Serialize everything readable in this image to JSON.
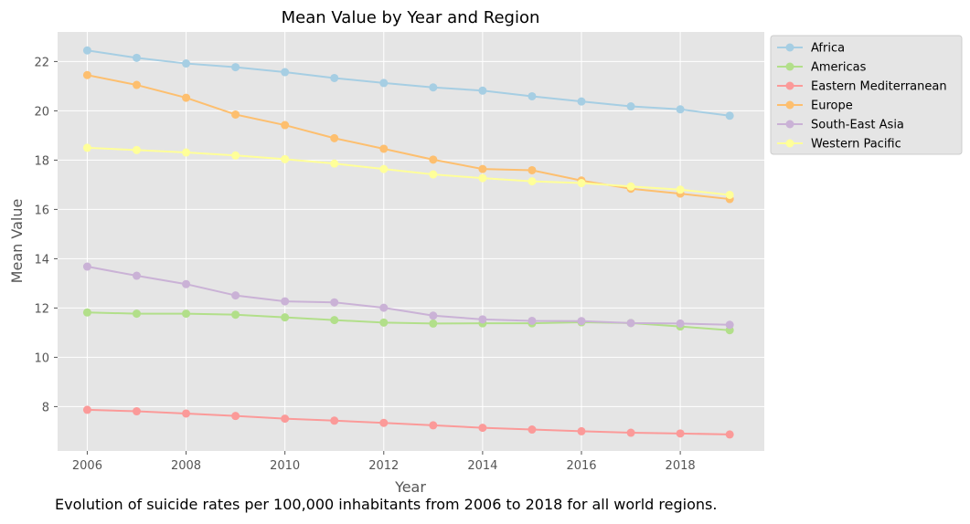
{
  "caption": "Evolution of suicide rates per 100,000 inhabitants from 2006 to 2018 for all world regions.",
  "chart_data": {
    "type": "line",
    "title": "Mean Value by Year and Region",
    "xlabel": "Year",
    "ylabel": "Mean Value",
    "xlim": [
      2005.4,
      2019.7
    ],
    "ylim": [
      6.2,
      23.2
    ],
    "x_ticks": [
      2006,
      2008,
      2010,
      2012,
      2014,
      2016,
      2018
    ],
    "y_ticks": [
      8,
      10,
      12,
      14,
      16,
      18,
      20,
      22
    ],
    "grid": true,
    "legend_position": "outside-top-right",
    "x": [
      2006,
      2007,
      2008,
      2009,
      2010,
      2011,
      2012,
      2013,
      2014,
      2015,
      2016,
      2017,
      2018,
      2019
    ],
    "series": [
      {
        "name": "Africa",
        "color": "#a6cee3",
        "values": [
          22.45,
          22.15,
          21.92,
          21.77,
          21.57,
          21.33,
          21.13,
          20.95,
          20.82,
          20.59,
          20.38,
          20.18,
          20.06,
          19.8
        ]
      },
      {
        "name": "Americas",
        "color": "#b2df8a",
        "values": [
          11.82,
          11.77,
          11.77,
          11.73,
          11.62,
          11.51,
          11.41,
          11.37,
          11.38,
          11.38,
          11.42,
          11.39,
          11.25,
          11.1
        ]
      },
      {
        "name": "Eastern Mediterranean",
        "color": "#fb9a99",
        "values": [
          7.87,
          7.81,
          7.72,
          7.62,
          7.51,
          7.43,
          7.34,
          7.24,
          7.14,
          7.07,
          7.0,
          6.94,
          6.91,
          6.87
        ]
      },
      {
        "name": "Europe",
        "color": "#fdbf6f",
        "values": [
          21.45,
          21.05,
          20.53,
          19.85,
          19.42,
          18.89,
          18.46,
          18.02,
          17.64,
          17.59,
          17.17,
          16.84,
          16.64,
          16.42
        ]
      },
      {
        "name": "South-East Asia",
        "color": "#cab2d6",
        "values": [
          13.68,
          13.31,
          12.97,
          12.51,
          12.27,
          12.23,
          12.01,
          11.69,
          11.54,
          11.48,
          11.47,
          11.39,
          11.37,
          11.32
        ]
      },
      {
        "name": "Western Pacific",
        "color": "#ffff99",
        "values": [
          18.5,
          18.41,
          18.31,
          18.19,
          18.04,
          17.86,
          17.64,
          17.42,
          17.27,
          17.14,
          17.07,
          16.93,
          16.8,
          16.59
        ]
      }
    ]
  }
}
